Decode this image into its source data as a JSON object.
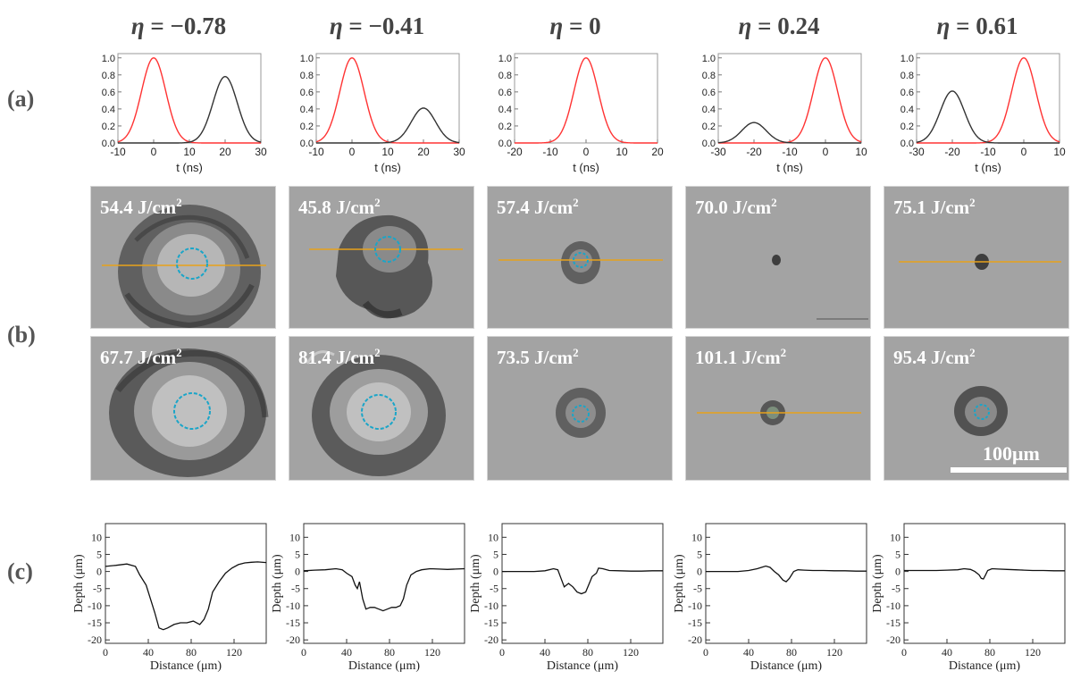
{
  "row_labels": {
    "a": "(a)",
    "b": "(b)",
    "c": "(c)"
  },
  "eta_symbol": "η",
  "eta_labels": [
    "−0.78",
    "−0.41",
    "0",
    "0.24",
    "0.61"
  ],
  "fluence_unit": "J/cm",
  "fluence_unit_sup": "2",
  "fluence_top": [
    "54.4",
    "45.8",
    "57.4",
    "70.0",
    "75.1"
  ],
  "fluence_bottom": [
    "67.7",
    "81.4",
    "73.5",
    "101.1",
    "95.4"
  ],
  "scale_bar": "100μm",
  "colors": {
    "pulse_main": "#ff3333",
    "pulse_secondary": "#333333",
    "line_profile": "#e8a21a",
    "spot_circle": "#1aa5c8",
    "photo_bg": "#a3a3a3"
  },
  "chart_data": [
    {
      "type": "line",
      "panel": "a1",
      "xlabel": "t (ns)",
      "xlim": [
        -10,
        30
      ],
      "xticks": [
        -10,
        0,
        10,
        20,
        30
      ],
      "ylim": [
        0,
        1.05
      ],
      "yticks": [
        "0.0",
        "0.2",
        "0.4",
        "0.6",
        "0.8",
        "1.0"
      ],
      "series": [
        {
          "name": "main pulse",
          "color": "#ff3333",
          "center": 0,
          "amplitude": 1.0,
          "fwhm": 8
        },
        {
          "name": "second pulse",
          "color": "#333333",
          "center": 20,
          "amplitude": 0.78,
          "fwhm": 8
        }
      ]
    },
    {
      "type": "line",
      "panel": "a2",
      "xlabel": "t (ns)",
      "xlim": [
        -10,
        30
      ],
      "xticks": [
        -10,
        0,
        10,
        20,
        30
      ],
      "ylim": [
        0,
        1.05
      ],
      "yticks": [
        "0.0",
        "0.2",
        "0.4",
        "0.6",
        "0.8",
        "1.0"
      ],
      "series": [
        {
          "name": "main pulse",
          "color": "#ff3333",
          "center": 0,
          "amplitude": 1.0,
          "fwhm": 8
        },
        {
          "name": "second pulse",
          "color": "#333333",
          "center": 20,
          "amplitude": 0.41,
          "fwhm": 8
        }
      ]
    },
    {
      "type": "line",
      "panel": "a3",
      "xlabel": "t (ns)",
      "xlim": [
        -20,
        20
      ],
      "xticks": [
        -20,
        -10,
        0,
        10,
        20
      ],
      "ylim": [
        0,
        1.05
      ],
      "yticks": [
        "0.0",
        "0.2",
        "0.4",
        "0.6",
        "0.8",
        "1.0"
      ],
      "series": [
        {
          "name": "main pulse",
          "color": "#ff3333",
          "center": 0,
          "amplitude": 1.0,
          "fwhm": 8
        }
      ]
    },
    {
      "type": "line",
      "panel": "a4",
      "xlabel": "t (ns)",
      "xlim": [
        -30,
        10
      ],
      "xticks": [
        -30,
        -20,
        -10,
        0,
        10
      ],
      "ylim": [
        0,
        1.05
      ],
      "yticks": [
        "0.0",
        "0.2",
        "0.4",
        "0.6",
        "0.8",
        "1.0"
      ],
      "series": [
        {
          "name": "main pulse",
          "color": "#ff3333",
          "center": 0,
          "amplitude": 1.0,
          "fwhm": 8
        },
        {
          "name": "pre pulse",
          "color": "#333333",
          "center": -20,
          "amplitude": 0.24,
          "fwhm": 8
        }
      ]
    },
    {
      "type": "line",
      "panel": "a5",
      "xlabel": "t (ns)",
      "xlim": [
        -30,
        10
      ],
      "xticks": [
        -30,
        -20,
        -10,
        0,
        10
      ],
      "ylim": [
        0,
        1.05
      ],
      "yticks": [
        "0.0",
        "0.2",
        "0.4",
        "0.6",
        "0.8",
        "1.0"
      ],
      "series": [
        {
          "name": "main pulse",
          "color": "#ff3333",
          "center": 0,
          "amplitude": 1.0,
          "fwhm": 8
        },
        {
          "name": "pre pulse",
          "color": "#333333",
          "center": -20,
          "amplitude": 0.61,
          "fwhm": 8
        }
      ]
    },
    {
      "type": "line",
      "panel": "c1",
      "xlabel": "Distance (μm)",
      "ylabel": "Depth (μm)",
      "xlim": [
        0,
        150
      ],
      "xticks": [
        0,
        40,
        80,
        120
      ],
      "ylim": [
        -21,
        14
      ],
      "yticks": [
        10,
        5,
        0,
        -5,
        -10,
        -15,
        -20
      ],
      "x": [
        0,
        10,
        20,
        28,
        32,
        38,
        42,
        46,
        50,
        54,
        58,
        64,
        70,
        76,
        82,
        88,
        92,
        96,
        100,
        106,
        112,
        118,
        124,
        130,
        136,
        142,
        150
      ],
      "y": [
        1.5,
        1.8,
        2.2,
        1.5,
        -1,
        -4,
        -8,
        -12,
        -16.5,
        -17,
        -16.5,
        -15.5,
        -15,
        -15,
        -14.5,
        -15.5,
        -14,
        -11,
        -6,
        -3,
        -0.5,
        1,
        2,
        2.5,
        2.7,
        2.8,
        2.6
      ]
    },
    {
      "type": "line",
      "panel": "c2",
      "xlabel": "Distance (μm)",
      "ylabel": "Depth (μm)",
      "xlim": [
        0,
        150
      ],
      "xticks": [
        0,
        40,
        80,
        120
      ],
      "ylim": [
        -21,
        14
      ],
      "yticks": [
        10,
        5,
        0,
        -5,
        -10,
        -15,
        -20
      ],
      "x": [
        0,
        10,
        20,
        30,
        36,
        40,
        45,
        48,
        50,
        52,
        55,
        58,
        62,
        66,
        70,
        74,
        78,
        82,
        86,
        90,
        93,
        96,
        100,
        105,
        110,
        118,
        126,
        134,
        142,
        150
      ],
      "y": [
        0.2,
        0.4,
        0.5,
        0.8,
        0.5,
        -0.5,
        -1.5,
        -4,
        -5,
        -3,
        -8,
        -11,
        -10.5,
        -10.5,
        -11,
        -11.5,
        -11,
        -10.5,
        -10.5,
        -10,
        -8,
        -4,
        -1,
        0,
        0.5,
        0.8,
        0.7,
        0.6,
        0.7,
        0.8
      ]
    },
    {
      "type": "line",
      "panel": "c3",
      "xlabel": "Distance (μm)",
      "ylabel": "Depth (μm)",
      "xlim": [
        0,
        150
      ],
      "xticks": [
        0,
        40,
        80,
        120
      ],
      "ylim": [
        -21,
        14
      ],
      "yticks": [
        10,
        5,
        0,
        -5,
        -10,
        -15,
        -20
      ],
      "x": [
        0,
        10,
        20,
        30,
        40,
        48,
        52,
        55,
        58,
        62,
        66,
        70,
        74,
        78,
        82,
        84,
        86,
        88,
        90,
        94,
        100,
        110,
        120,
        130,
        140,
        150
      ],
      "y": [
        0,
        0,
        0,
        0,
        0.2,
        0.8,
        0.5,
        -2,
        -4.5,
        -3.5,
        -4.5,
        -6,
        -6.5,
        -6,
        -3,
        -1.5,
        -1,
        -0.5,
        1,
        0.8,
        0.3,
        0.2,
        0.1,
        0.1,
        0.2,
        0.2
      ]
    },
    {
      "type": "line",
      "panel": "c4",
      "xlabel": "Distance (μm)",
      "ylabel": "Depth (μm)",
      "xlim": [
        0,
        150
      ],
      "xticks": [
        0,
        40,
        80,
        120
      ],
      "ylim": [
        -21,
        14
      ],
      "yticks": [
        10,
        5,
        0,
        -5,
        -10,
        -15,
        -20
      ],
      "x": [
        0,
        10,
        20,
        30,
        40,
        48,
        52,
        56,
        60,
        64,
        68,
        72,
        75,
        78,
        82,
        86,
        92,
        100,
        110,
        120,
        130,
        140,
        150
      ],
      "y": [
        0,
        0,
        0,
        0,
        0.3,
        0.8,
        1.2,
        1.6,
        1.2,
        0,
        -1,
        -2.5,
        -3,
        -2,
        0,
        0.5,
        0.4,
        0.3,
        0.3,
        0.2,
        0.2,
        0.1,
        0.1
      ]
    },
    {
      "type": "line",
      "panel": "c5",
      "xlabel": "Distance (μm)",
      "ylabel": "Depth (μm)",
      "xlim": [
        0,
        150
      ],
      "xticks": [
        0,
        40,
        80,
        120
      ],
      "ylim": [
        -21,
        14
      ],
      "yticks": [
        10,
        5,
        0,
        -5,
        -10,
        -15,
        -20
      ],
      "x": [
        0,
        10,
        20,
        30,
        40,
        50,
        56,
        62,
        66,
        70,
        72,
        74,
        76,
        78,
        82,
        88,
        96,
        104,
        112,
        120,
        130,
        140,
        150
      ],
      "y": [
        0.3,
        0.3,
        0.3,
        0.3,
        0.4,
        0.5,
        0.8,
        0.6,
        0,
        -1,
        -2,
        -2.2,
        -1,
        0.3,
        0.8,
        0.7,
        0.6,
        0.5,
        0.4,
        0.3,
        0.3,
        0.2,
        0.2
      ]
    }
  ]
}
